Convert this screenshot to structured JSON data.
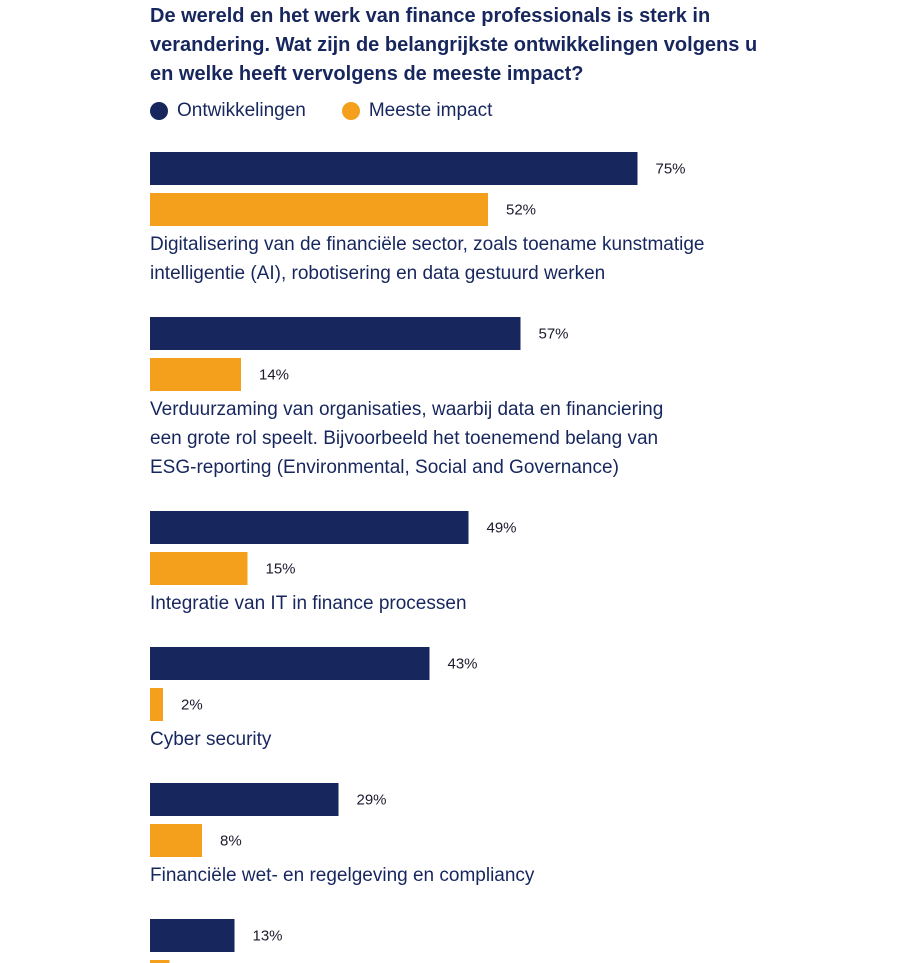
{
  "title": "De wereld en het werk van finance professionals is sterk in verandering. Wat zijn de belangrijkste ontwikkelingen volgens u en welke heeft vervolgens de meeste impact?",
  "colors": {
    "ontwikkelingen": "#17275e",
    "impact": "#f4a01c",
    "text": "#17275e"
  },
  "chart_data": {
    "type": "bar",
    "orientation": "horizontal",
    "title": "De wereld en het werk van finance professionals is sterk in verandering. Wat zijn de belangrijkste ontwikkelingen volgens u en welke heeft vervolgens de meeste impact?",
    "legend_position": "top-left",
    "grid": false,
    "value_format": "percent",
    "xlim": [
      0,
      100
    ],
    "categories": [
      [
        "Digitalisering van de financiële sector, zoals toename kunstmatige",
        "intelligentie (AI), robotisering en data gestuurd werken"
      ],
      [
        "Verduurzaming van organisaties, waarbij data en financiering",
        "een grote rol speelt. Bijvoorbeeld het toenemend belang van",
        "ESG-reporting (Environmental, Social and Governance)"
      ],
      [
        "Integratie van IT in finance processen"
      ],
      [
        "Cyber security"
      ],
      [
        "Financiële wet- en regelgeving en compliancy"
      ],
      [
        ""
      ]
    ],
    "series": [
      {
        "name": "Ontwikkelingen",
        "color": "#17275e",
        "values": [
          75,
          57,
          49,
          43,
          29,
          13
        ]
      },
      {
        "name": "Meeste impact",
        "color": "#f4a01c",
        "values": [
          52,
          14,
          15,
          2,
          8,
          3
        ]
      }
    ]
  }
}
